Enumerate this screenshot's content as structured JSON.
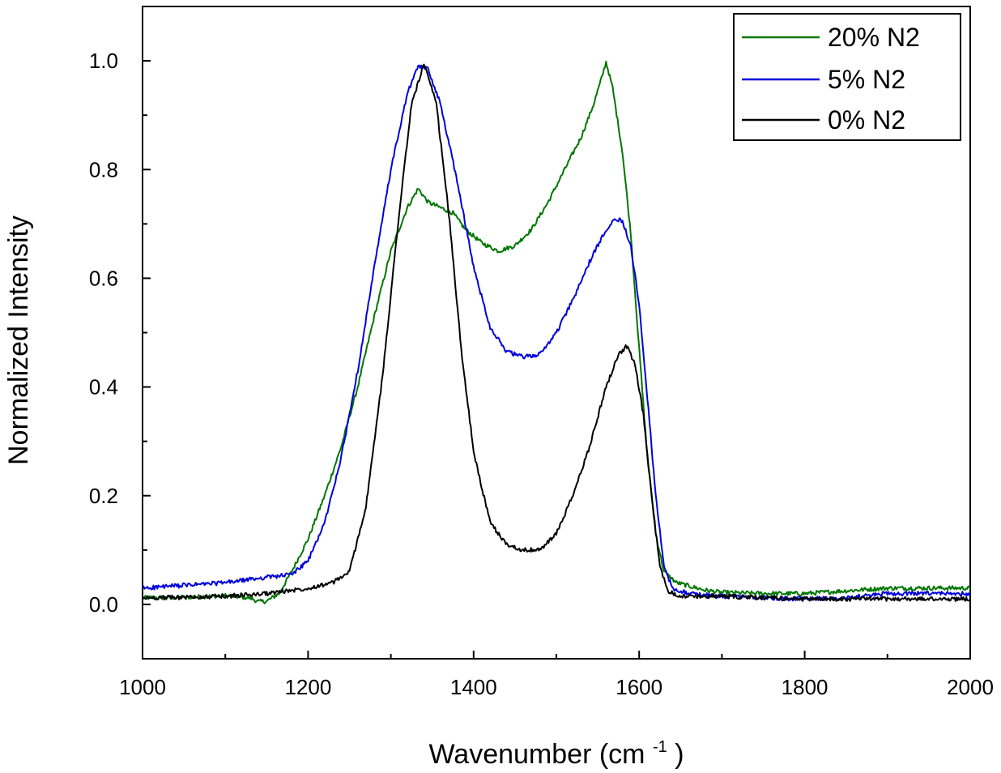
{
  "chart_data": {
    "type": "line",
    "title": "",
    "xlabel": "Wavenumber (cm",
    "xlabel_sup": "-1",
    "xlabel_close": ")",
    "ylabel": "Normalized Intensity",
    "xlim": [
      1000,
      2000
    ],
    "ylim": [
      -0.1,
      1.1
    ],
    "x_ticks": [
      1000,
      1200,
      1400,
      1600,
      1800,
      2000
    ],
    "x_tick_labels": [
      "1000",
      "1200",
      "1400",
      "1600",
      "1800",
      "2000"
    ],
    "y_ticks": [
      0.0,
      0.2,
      0.4,
      0.6,
      0.8,
      1.0
    ],
    "y_tick_labels": [
      "0.0",
      "0.2",
      "0.4",
      "0.6",
      "0.8",
      "1.0"
    ],
    "grid": false,
    "legend_position": "top-right",
    "series": [
      {
        "name": "20% N2",
        "color": "#007700",
        "points": [
          [
            1000,
            0.012
          ],
          [
            1050,
            0.013
          ],
          [
            1100,
            0.016
          ],
          [
            1130,
            0.012
          ],
          [
            1140,
            0.005
          ],
          [
            1150,
            0.006
          ],
          [
            1165,
            0.02
          ],
          [
            1180,
            0.06
          ],
          [
            1200,
            0.12
          ],
          [
            1220,
            0.2
          ],
          [
            1240,
            0.29
          ],
          [
            1260,
            0.4
          ],
          [
            1280,
            0.53
          ],
          [
            1300,
            0.65
          ],
          [
            1320,
            0.73
          ],
          [
            1333,
            0.765
          ],
          [
            1345,
            0.74
          ],
          [
            1360,
            0.73
          ],
          [
            1375,
            0.72
          ],
          [
            1390,
            0.69
          ],
          [
            1410,
            0.665
          ],
          [
            1430,
            0.65
          ],
          [
            1450,
            0.66
          ],
          [
            1470,
            0.69
          ],
          [
            1490,
            0.74
          ],
          [
            1510,
            0.8
          ],
          [
            1530,
            0.86
          ],
          [
            1545,
            0.92
          ],
          [
            1555,
            0.97
          ],
          [
            1560,
            0.998
          ],
          [
            1568,
            0.95
          ],
          [
            1580,
            0.83
          ],
          [
            1590,
            0.68
          ],
          [
            1600,
            0.47
          ],
          [
            1610,
            0.27
          ],
          [
            1620,
            0.13
          ],
          [
            1630,
            0.06
          ],
          [
            1645,
            0.04
          ],
          [
            1680,
            0.026
          ],
          [
            1700,
            0.022
          ],
          [
            1750,
            0.02
          ],
          [
            1800,
            0.02
          ],
          [
            1850,
            0.025
          ],
          [
            1900,
            0.03
          ],
          [
            1950,
            0.03
          ],
          [
            2000,
            0.03
          ]
        ]
      },
      {
        "name": "5% N2",
        "color": "#0000dd",
        "points": [
          [
            1000,
            0.03
          ],
          [
            1050,
            0.035
          ],
          [
            1100,
            0.04
          ],
          [
            1150,
            0.05
          ],
          [
            1180,
            0.055
          ],
          [
            1200,
            0.08
          ],
          [
            1220,
            0.15
          ],
          [
            1240,
            0.27
          ],
          [
            1260,
            0.43
          ],
          [
            1280,
            0.62
          ],
          [
            1300,
            0.8
          ],
          [
            1320,
            0.94
          ],
          [
            1333,
            0.99
          ],
          [
            1345,
            0.985
          ],
          [
            1360,
            0.92
          ],
          [
            1380,
            0.78
          ],
          [
            1400,
            0.62
          ],
          [
            1420,
            0.51
          ],
          [
            1440,
            0.465
          ],
          [
            1460,
            0.455
          ],
          [
            1480,
            0.46
          ],
          [
            1500,
            0.5
          ],
          [
            1520,
            0.56
          ],
          [
            1540,
            0.63
          ],
          [
            1560,
            0.69
          ],
          [
            1570,
            0.71
          ],
          [
            1580,
            0.705
          ],
          [
            1590,
            0.66
          ],
          [
            1600,
            0.55
          ],
          [
            1610,
            0.38
          ],
          [
            1620,
            0.2
          ],
          [
            1630,
            0.07
          ],
          [
            1640,
            0.03
          ],
          [
            1660,
            0.02
          ],
          [
            1700,
            0.015
          ],
          [
            1750,
            0.012
          ],
          [
            1800,
            0.01
          ],
          [
            1850,
            0.012
          ],
          [
            1900,
            0.02
          ],
          [
            1950,
            0.02
          ],
          [
            2000,
            0.02
          ]
        ]
      },
      {
        "name": "0% N2",
        "color": "#000000",
        "points": [
          [
            1000,
            0.012
          ],
          [
            1050,
            0.013
          ],
          [
            1100,
            0.015
          ],
          [
            1150,
            0.02
          ],
          [
            1200,
            0.03
          ],
          [
            1230,
            0.04
          ],
          [
            1250,
            0.06
          ],
          [
            1270,
            0.18
          ],
          [
            1290,
            0.42
          ],
          [
            1310,
            0.72
          ],
          [
            1325,
            0.92
          ],
          [
            1340,
            0.995
          ],
          [
            1355,
            0.92
          ],
          [
            1370,
            0.72
          ],
          [
            1385,
            0.47
          ],
          [
            1400,
            0.28
          ],
          [
            1420,
            0.15
          ],
          [
            1440,
            0.11
          ],
          [
            1460,
            0.1
          ],
          [
            1480,
            0.1
          ],
          [
            1500,
            0.13
          ],
          [
            1520,
            0.2
          ],
          [
            1540,
            0.29
          ],
          [
            1560,
            0.4
          ],
          [
            1575,
            0.46
          ],
          [
            1585,
            0.475
          ],
          [
            1595,
            0.44
          ],
          [
            1605,
            0.35
          ],
          [
            1615,
            0.2
          ],
          [
            1625,
            0.07
          ],
          [
            1635,
            0.025
          ],
          [
            1650,
            0.015
          ],
          [
            1700,
            0.015
          ],
          [
            1750,
            0.012
          ],
          [
            1800,
            0.01
          ],
          [
            1850,
            0.01
          ],
          [
            1900,
            0.01
          ],
          [
            1950,
            0.01
          ],
          [
            2000,
            0.01
          ]
        ]
      }
    ]
  }
}
